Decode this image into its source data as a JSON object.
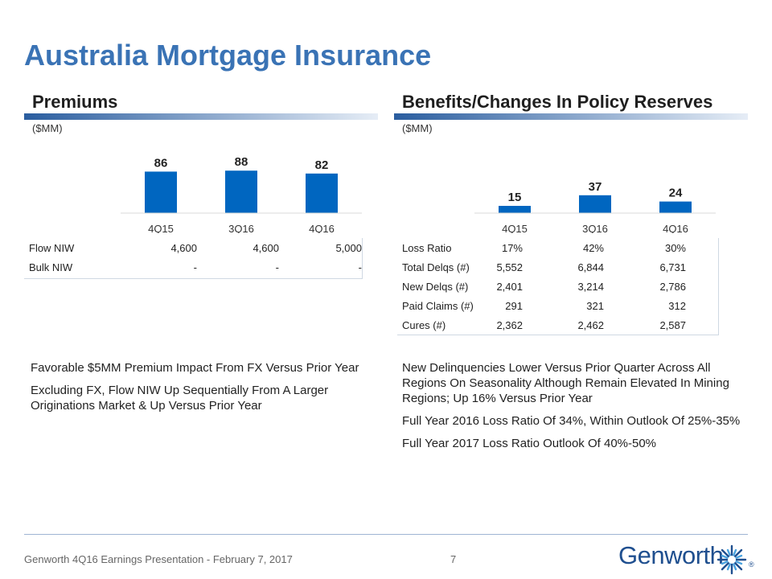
{
  "title": "Australia Mortgage Insurance",
  "colors": {
    "title": "#3a73b5",
    "bar": "#0066c0",
    "section_bar_start": "#2a5d9f",
    "section_bar_end": "#e6edf6"
  },
  "premiums": {
    "title": "Premiums",
    "unit": "($MM)",
    "table": {
      "rows": [
        {
          "label": "Flow NIW",
          "values": [
            "4,600",
            "4,600",
            "5,000"
          ]
        },
        {
          "label": "Bulk NIW",
          "values": [
            "-",
            "-",
            "-"
          ]
        }
      ]
    },
    "bullets": [
      "Favorable $5MM Premium Impact From FX Versus Prior Year",
      "Excluding FX, Flow NIW Up Sequentially From A Larger Originations Market & Up Versus Prior Year"
    ]
  },
  "benefits": {
    "title": "Benefits/Changes In Policy Reserves",
    "unit": "($MM)",
    "table": {
      "rows": [
        {
          "label": "Loss Ratio",
          "values": [
            "17%",
            "42%",
            "30%"
          ]
        },
        {
          "label": "Total Delqs (#)",
          "values": [
            "5,552",
            "6,844",
            "6,731"
          ]
        },
        {
          "label": "New Delqs (#)",
          "values": [
            "2,401",
            "3,214",
            "2,786"
          ]
        },
        {
          "label": "Paid Claims (#)",
          "values": [
            "291",
            "321",
            "312"
          ]
        },
        {
          "label": "Cures (#)",
          "values": [
            "2,362",
            "2,462",
            "2,587"
          ]
        }
      ]
    },
    "bullets": [
      "New Delinquencies Lower Versus Prior Quarter Across All Regions On Seasonality Although Remain Elevated In Mining Regions; Up 16% Versus Prior Year",
      "Full Year 2016 Loss Ratio Of 34%, Within Outlook Of 25%-35%",
      "Full Year 2017 Loss Ratio Outlook Of 40%-50%"
    ]
  },
  "chart_data": [
    {
      "type": "bar",
      "title": "Premiums",
      "ylabel": "($MM)",
      "categories": [
        "4Q15",
        "3Q16",
        "4Q16"
      ],
      "values": [
        86,
        88,
        82
      ],
      "labels": [
        "86",
        "88",
        "82"
      ],
      "ylim": [
        0,
        100
      ]
    },
    {
      "type": "bar",
      "title": "Benefits/Changes In Policy Reserves",
      "ylabel": "($MM)",
      "categories": [
        "4Q15",
        "3Q16",
        "4Q16"
      ],
      "values": [
        15,
        37,
        24
      ],
      "labels": [
        "15",
        "37",
        "24"
      ],
      "ylim": [
        0,
        100
      ]
    }
  ],
  "footer": {
    "text": "Genworth 4Q16 Earnings Presentation - February 7, 2017",
    "page": "7",
    "logo": "Genworth",
    "logo_mark": "®"
  }
}
